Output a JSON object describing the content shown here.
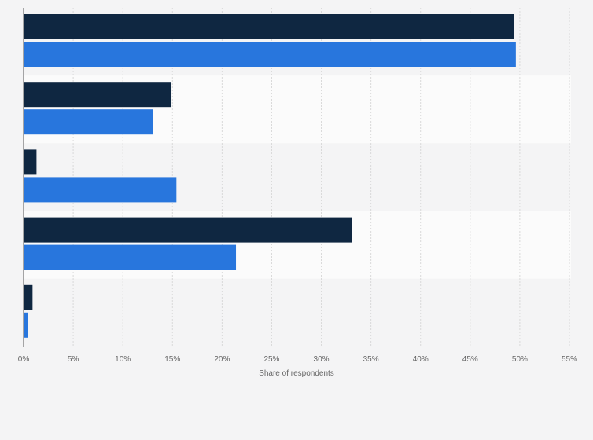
{
  "chart_data": {
    "type": "bar",
    "orientation": "horizontal",
    "categories": [
      "",
      "",
      "",
      "",
      ""
    ],
    "series": [
      {
        "values": [
          49.4,
          14.9,
          1.3,
          33.1,
          0.9
        ]
      },
      {
        "values": [
          49.6,
          13.0,
          15.4,
          21.4,
          0.4
        ]
      }
    ],
    "xlabel": "Share of respondents",
    "ylabel": "",
    "xlim": [
      0,
      55
    ],
    "xticks": [
      0,
      5,
      10,
      15,
      20,
      25,
      30,
      35,
      40,
      45,
      50,
      55
    ],
    "xtick_labels": [
      "0%",
      "5%",
      "10%",
      "15%",
      "20%",
      "25%",
      "30%",
      "35%",
      "40%",
      "45%",
      "50%",
      "55%"
    ],
    "grid": true,
    "legend": "none",
    "colors": {
      "series_0": "#0f2741",
      "series_1": "#2876dd",
      "band_odd": "#f4f4f5",
      "band_even": "#fbfbfb",
      "grid": "#d9d9d9",
      "axis": "#555555",
      "text": "#666666"
    }
  }
}
